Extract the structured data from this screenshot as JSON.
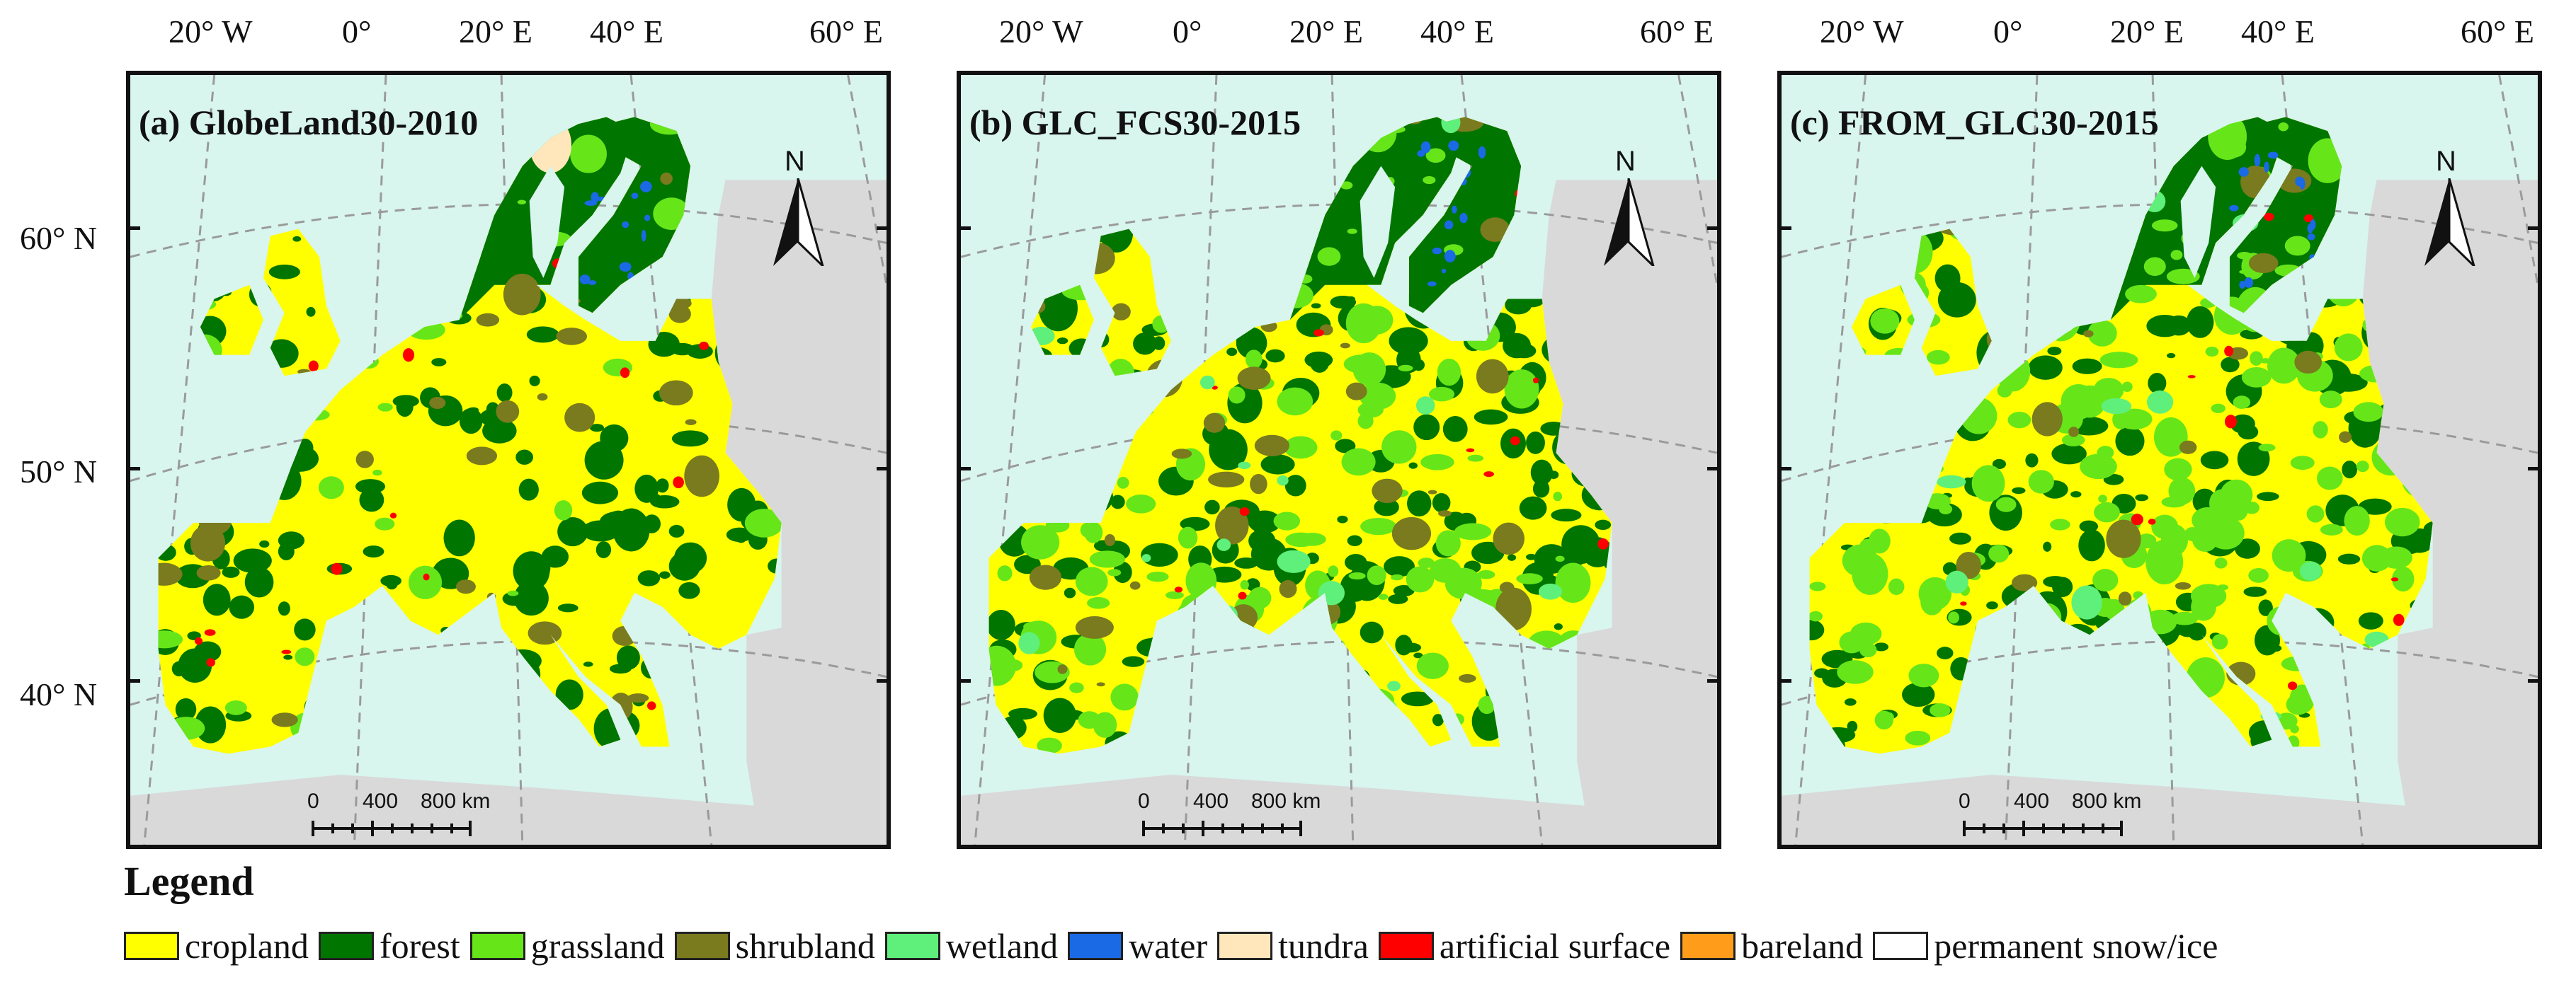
{
  "longitude_labels": [
    "20° W",
    "0°",
    "20° E",
    "40° E",
    "60° E"
  ],
  "latitude_labels": [
    "60° N",
    "50° N",
    "40° N"
  ],
  "panels": [
    {
      "title": "(a) GlobeLand30-2010",
      "scheme": "a"
    },
    {
      "title": "(b) GLC_FCS30-2015",
      "scheme": "b"
    },
    {
      "title": "(c) FROM_GLC30-2015",
      "scheme": "c"
    }
  ],
  "north_arrow_label": "N",
  "scale_bar": {
    "ticks": [
      "0",
      "400",
      "800 km"
    ]
  },
  "legend": {
    "title": "Legend",
    "items": [
      {
        "label": "cropland",
        "color": "#ffff00"
      },
      {
        "label": "forest",
        "color": "#007500"
      },
      {
        "label": "grassland",
        "color": "#66e619"
      },
      {
        "label": "shrubland",
        "color": "#7a7a1e"
      },
      {
        "label": "wetland",
        "color": "#5ef07a"
      },
      {
        "label": "water",
        "color": "#1a6ae6"
      },
      {
        "label": "tundra",
        "color": "#ffe6bb"
      },
      {
        "label": "artificial surface",
        "color": "#ff0000"
      },
      {
        "label": "bareland",
        "color": "#ff9d1a"
      },
      {
        "label": "permanent snow/ice",
        "color": "#ffffff"
      }
    ]
  },
  "colors": {
    "sea": "#d8f5ee",
    "outside_land": "#d9d9d9",
    "graticule": "#9a9a9a"
  }
}
